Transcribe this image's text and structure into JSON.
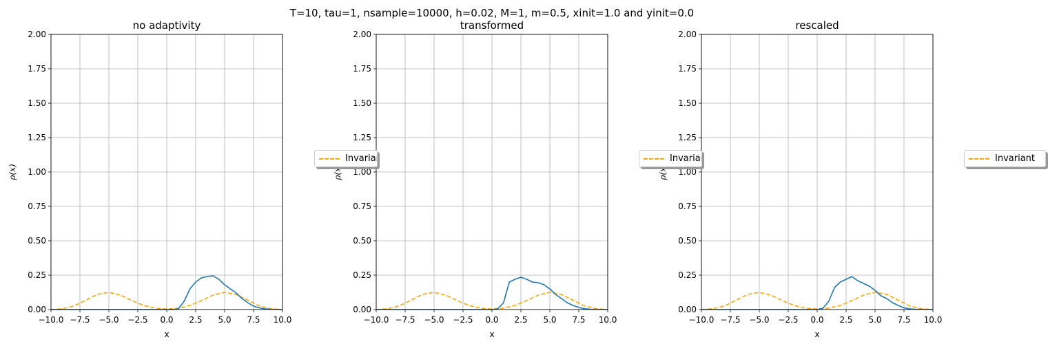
{
  "suptitle": "T=10, tau=1, nsample=10000, h=0.02, M=1, m=0.5, xinit=1.0 and yinit=0.0",
  "chart_data": [
    {
      "type": "line",
      "title": "no adaptivity",
      "xlabel": "x",
      "ylabel": "ρ(x)",
      "xlim": [
        -10,
        10
      ],
      "ylim": [
        0,
        2
      ],
      "xticks": [
        "−10.0",
        "−7.5",
        "−5.0",
        "−2.5",
        "0.0",
        "2.5",
        "5.0",
        "7.5",
        "10.0"
      ],
      "yticks": [
        "0.00",
        "0.25",
        "0.50",
        "0.75",
        "1.00",
        "1.25",
        "1.50",
        "1.75",
        "2.00"
      ],
      "grid": true,
      "legend": {
        "entries": [
          "Invariant"
        ],
        "placement": "outside right"
      },
      "series": [
        {
          "name": "Invariant",
          "style": "dashed",
          "color": "#ffa500",
          "x": [
            -10,
            -9,
            -8,
            -7,
            -6,
            -5,
            -4,
            -3,
            -2,
            -1,
            0,
            1,
            2,
            3,
            4,
            5,
            6,
            7,
            8,
            9,
            10
          ],
          "y": [
            0.0,
            0.006,
            0.026,
            0.068,
            0.11,
            0.125,
            0.105,
            0.065,
            0.03,
            0.01,
            0.004,
            0.01,
            0.03,
            0.065,
            0.105,
            0.125,
            0.11,
            0.068,
            0.026,
            0.006,
            0.0
          ]
        },
        {
          "style": "solid",
          "color": "#1f77b4",
          "x": [
            -10,
            0.5,
            1.0,
            1.5,
            2.0,
            2.5,
            3.0,
            3.5,
            4.0,
            4.5,
            5.0,
            5.5,
            6.0,
            6.5,
            7.0,
            7.5,
            8.0,
            8.5,
            9.0,
            10
          ],
          "y": [
            0.0,
            0.0,
            0.005,
            0.06,
            0.15,
            0.2,
            0.23,
            0.24,
            0.245,
            0.22,
            0.18,
            0.15,
            0.12,
            0.08,
            0.05,
            0.025,
            0.012,
            0.005,
            0.002,
            0.0
          ]
        }
      ]
    },
    {
      "type": "line",
      "title": "transformed",
      "xlabel": "x",
      "ylabel": "ρ(x)",
      "xlim": [
        -10,
        10
      ],
      "ylim": [
        0,
        2
      ],
      "xticks": [
        "−10.0",
        "−7.5",
        "−5.0",
        "−2.5",
        "0.0",
        "2.5",
        "5.0",
        "7.5",
        "10.0"
      ],
      "yticks": [
        "0.00",
        "0.25",
        "0.50",
        "0.75",
        "1.00",
        "1.25",
        "1.50",
        "1.75",
        "2.00"
      ],
      "grid": true,
      "legend": {
        "entries": [
          "Invariant"
        ],
        "placement": "outside right"
      },
      "series": [
        {
          "name": "Invariant",
          "style": "dashed",
          "color": "#ffa500",
          "x": [
            -10,
            -9,
            -8,
            -7,
            -6,
            -5,
            -4,
            -3,
            -2,
            -1,
            0,
            1,
            2,
            3,
            4,
            5,
            6,
            7,
            8,
            9,
            10
          ],
          "y": [
            0.0,
            0.006,
            0.026,
            0.068,
            0.11,
            0.125,
            0.105,
            0.065,
            0.03,
            0.01,
            0.004,
            0.01,
            0.03,
            0.065,
            0.105,
            0.125,
            0.11,
            0.068,
            0.026,
            0.006,
            0.0
          ]
        },
        {
          "style": "solid",
          "color": "#1f77b4",
          "x": [
            -10,
            0.0,
            0.5,
            1.0,
            1.5,
            2.0,
            2.5,
            3.0,
            3.5,
            4.0,
            4.5,
            5.0,
            5.5,
            6.0,
            6.5,
            7.0,
            7.5,
            8.0,
            8.5,
            10
          ],
          "y": [
            0.0,
            0.0,
            0.005,
            0.05,
            0.2,
            0.22,
            0.235,
            0.22,
            0.2,
            0.195,
            0.18,
            0.15,
            0.11,
            0.08,
            0.05,
            0.03,
            0.015,
            0.006,
            0.002,
            0.0
          ]
        }
      ]
    },
    {
      "type": "line",
      "title": "rescaled",
      "xlabel": "x",
      "ylabel": "ρ(x)",
      "xlim": [
        -10,
        10
      ],
      "ylim": [
        0,
        2
      ],
      "xticks": [
        "−10.0",
        "−7.5",
        "−5.0",
        "−2.5",
        "0.0",
        "2.5",
        "5.0",
        "7.5",
        "10.0"
      ],
      "yticks": [
        "0.00",
        "0.25",
        "0.50",
        "0.75",
        "1.00",
        "1.25",
        "1.50",
        "1.75",
        "2.00"
      ],
      "grid": true,
      "legend": {
        "entries": [
          "Invariant"
        ],
        "placement": "outside right"
      },
      "series": [
        {
          "name": "Invariant",
          "style": "dashed",
          "color": "#ffa500",
          "x": [
            -10,
            -9,
            -8,
            -7,
            -6,
            -5,
            -4,
            -3,
            -2,
            -1,
            0,
            1,
            2,
            3,
            4,
            5,
            6,
            7,
            8,
            9,
            10
          ],
          "y": [
            0.0,
            0.006,
            0.026,
            0.068,
            0.11,
            0.125,
            0.105,
            0.065,
            0.03,
            0.01,
            0.004,
            0.01,
            0.03,
            0.065,
            0.105,
            0.125,
            0.11,
            0.068,
            0.026,
            0.006,
            0.0
          ]
        },
        {
          "style": "solid",
          "color": "#1f77b4",
          "x": [
            -10,
            0.0,
            0.5,
            1.0,
            1.5,
            2.0,
            2.5,
            3.0,
            3.5,
            4.0,
            4.5,
            5.0,
            5.5,
            6.0,
            6.5,
            7.0,
            7.5,
            8.0,
            8.5,
            10
          ],
          "y": [
            0.0,
            0.0,
            0.01,
            0.06,
            0.16,
            0.2,
            0.22,
            0.24,
            0.21,
            0.19,
            0.17,
            0.14,
            0.1,
            0.08,
            0.05,
            0.03,
            0.012,
            0.005,
            0.002,
            0.0
          ]
        }
      ]
    }
  ]
}
